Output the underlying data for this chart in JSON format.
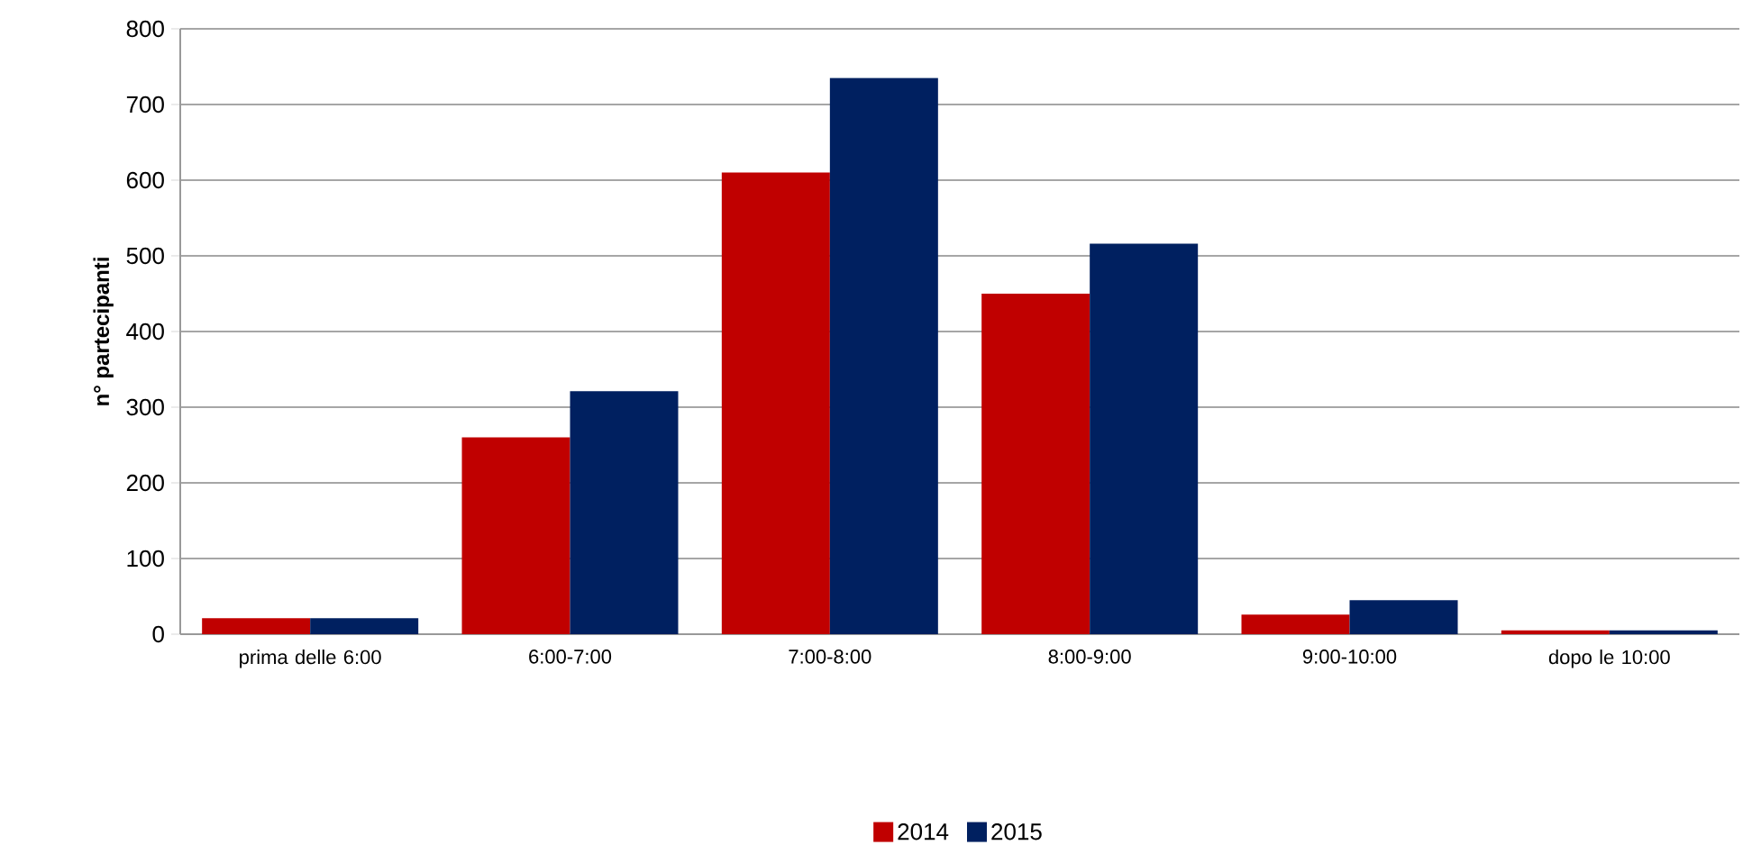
{
  "chart_data": {
    "type": "bar",
    "ylabel": "n° partecipanti",
    "categories": [
      "prima delle 6:00",
      "6:00-7:00",
      "7:00-8:00",
      "8:00-9:00",
      "9:00-10:00",
      "dopo le 10:00"
    ],
    "series": [
      {
        "name": "2014",
        "color": "#c00000",
        "values": [
          21,
          260,
          610,
          450,
          26,
          5
        ]
      },
      {
        "name": "2015",
        "color": "#002060",
        "values": [
          21,
          321,
          735,
          516,
          45,
          5
        ]
      }
    ],
    "ylim": [
      0,
      800
    ],
    "yticks": [
      0,
      100,
      200,
      300,
      400,
      500,
      600,
      700,
      800
    ],
    "grid": "y",
    "legend": "bottom"
  }
}
